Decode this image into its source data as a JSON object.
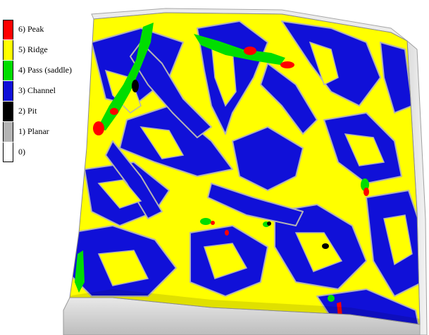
{
  "colors": {
    "peak": "#ff0000",
    "ridge": "#ffff00",
    "pass": "#00dd00",
    "channel": "#1010d8",
    "pit": "#000000",
    "planar": "#b4b4b4",
    "none": "#ffffff"
  },
  "legend": {
    "items": [
      {
        "label": "6) Peak",
        "color": "#ff0000"
      },
      {
        "label": "5) Ridge",
        "color": "#ffff00"
      },
      {
        "label": "4) Pass (saddle)",
        "color": "#00dd00"
      },
      {
        "label": "3) Channel",
        "color": "#1010d8"
      },
      {
        "label": "2) Pit",
        "color": "#000000"
      },
      {
        "label": "1) Planar",
        "color": "#b4b4b4"
      },
      {
        "label": "0)",
        "color": "#ffffff"
      }
    ]
  }
}
